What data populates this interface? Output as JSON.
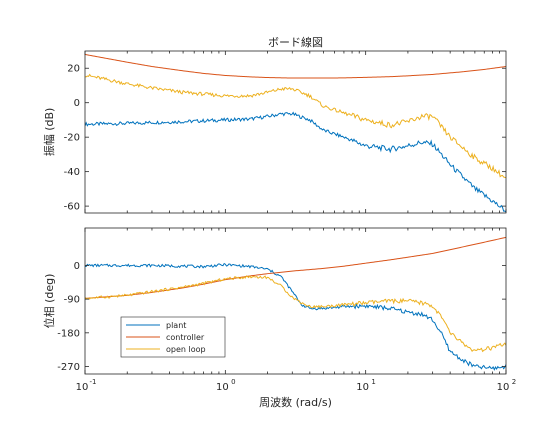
{
  "chart_data": [
    {
      "type": "line",
      "title": "ボード線図",
      "xlabel": "",
      "ylabel": "振幅 (dB)",
      "xscale": "log",
      "xlim": [
        0.1,
        100
      ],
      "ylim": [
        -64,
        30
      ],
      "yticks": [
        20,
        0,
        -20,
        -40,
        -60
      ],
      "ytick_labels": [
        "20",
        "0",
        "-20",
        "-40",
        "-60"
      ],
      "grid": false,
      "series": [
        {
          "name": "plant",
          "color": "#0072BD",
          "x": [
            0.1,
            0.2,
            0.3,
            0.5,
            0.7,
            1,
            1.5,
            2,
            2.5,
            3,
            4,
            5,
            7,
            10,
            15,
            20,
            25,
            30,
            40,
            60,
            80,
            100
          ],
          "y": [
            -12.5,
            -12,
            -11.5,
            -11,
            -10.5,
            -10,
            -9.5,
            -8,
            -6.5,
            -6.5,
            -10,
            -16,
            -20,
            -25,
            -27,
            -25,
            -23,
            -24,
            -36,
            -50,
            -57,
            -63
          ]
        },
        {
          "name": "controller",
          "color": "#D95319",
          "x": [
            0.1,
            0.2,
            0.3,
            0.5,
            0.7,
            1,
            1.5,
            2,
            3,
            5,
            7,
            10,
            15,
            20,
            30,
            50,
            70,
            100
          ],
          "y": [
            28,
            23.5,
            21,
            18.5,
            17,
            15.8,
            15,
            14.6,
            14.3,
            14.3,
            14.4,
            14.7,
            15.1,
            15.6,
            16.4,
            18,
            19.3,
            21
          ]
        },
        {
          "name": "open loop",
          "color": "#EDB120",
          "x": [
            0.1,
            0.2,
            0.3,
            0.5,
            0.7,
            1,
            1.5,
            2,
            2.5,
            3,
            4,
            5,
            7,
            10,
            15,
            20,
            25,
            30,
            40,
            60,
            80,
            100
          ],
          "y": [
            16,
            11,
            8.5,
            6,
            5,
            4,
            4,
            6,
            8,
            8,
            4,
            -2,
            -6,
            -10,
            -13,
            -11,
            -8,
            -8,
            -20,
            -32,
            -38,
            -44
          ]
        }
      ]
    },
    {
      "type": "line",
      "title": "",
      "xlabel": "周波数 (rad/s)",
      "ylabel": "位相 (deg)",
      "xscale": "log",
      "xlim": [
        0.1,
        100
      ],
      "ylim": [
        -290,
        100
      ],
      "xticks": [
        0.1,
        1,
        10,
        100
      ],
      "xtick_labels": [
        {
          "base": "10",
          "exp": "-1"
        },
        {
          "base": "10",
          "exp": "0"
        },
        {
          "base": "10",
          "exp": "1"
        },
        {
          "base": "10",
          "exp": "2"
        }
      ],
      "yticks": [
        0,
        -90,
        -180,
        -270
      ],
      "ytick_labels": [
        "0",
        "-90",
        "-180",
        "-270"
      ],
      "grid": false,
      "legend": {
        "placement": "bottom-left",
        "entries": [
          "plant",
          "controller",
          "open loop"
        ]
      },
      "series": [
        {
          "name": "plant",
          "color": "#0072BD",
          "x": [
            0.1,
            0.3,
            0.5,
            0.7,
            1,
            1.5,
            2,
            2.5,
            3,
            3.5,
            4,
            5,
            7,
            10,
            15,
            20,
            25,
            30,
            35,
            40,
            50,
            60,
            80,
            100
          ],
          "y": [
            0,
            0,
            -2,
            -3,
            2,
            -3,
            -10,
            -30,
            -70,
            -105,
            -115,
            -115,
            -110,
            -108,
            -115,
            -125,
            -130,
            -145,
            -185,
            -230,
            -255,
            -270,
            -275,
            -270
          ]
        },
        {
          "name": "controller",
          "color": "#D95319",
          "x": [
            0.1,
            0.2,
            0.3,
            0.5,
            0.7,
            1,
            1.5,
            2,
            3,
            5,
            7,
            10,
            15,
            20,
            30,
            50,
            70,
            100
          ],
          "y": [
            -88,
            -80,
            -72,
            -60,
            -50,
            -38,
            -28,
            -22,
            -15,
            -8,
            -2,
            6,
            15,
            22,
            32,
            50,
            62,
            75
          ]
        },
        {
          "name": "open loop",
          "color": "#EDB120",
          "x": [
            0.1,
            0.2,
            0.3,
            0.5,
            0.7,
            1,
            1.5,
            2,
            2.5,
            3,
            3.5,
            4,
            5,
            7,
            10,
            15,
            20,
            25,
            30,
            35,
            40,
            50,
            60,
            80,
            100
          ],
          "y": [
            -88,
            -80,
            -70,
            -58,
            -48,
            -36,
            -30,
            -32,
            -55,
            -85,
            -100,
            -110,
            -110,
            -105,
            -100,
            -95,
            -95,
            -100,
            -108,
            -140,
            -180,
            -210,
            -230,
            -220,
            -210
          ]
        }
      ]
    }
  ]
}
